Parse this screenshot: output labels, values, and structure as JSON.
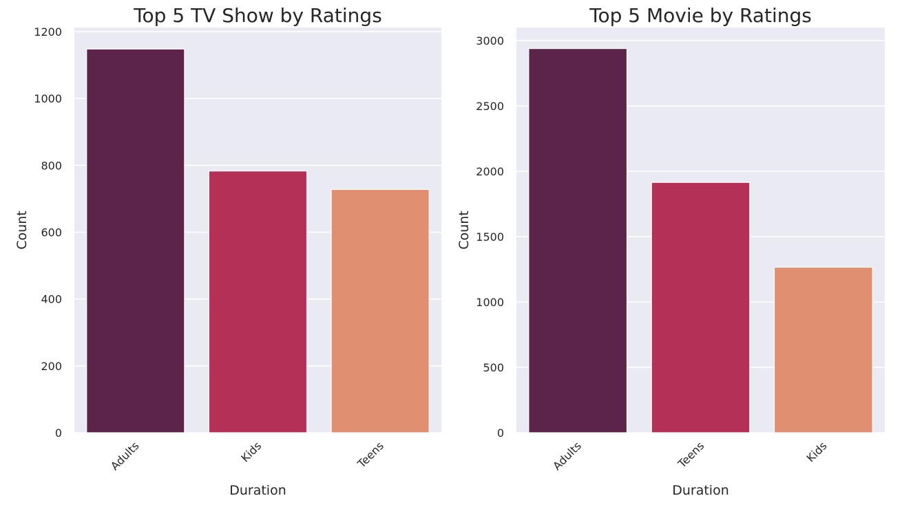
{
  "chart_data": [
    {
      "type": "bar",
      "title": "Top 5 TV Show by Ratings",
      "xlabel": "Duration",
      "ylabel": "Count",
      "categories": [
        "Adults",
        "Kids",
        "Teens"
      ],
      "values": [
        1148,
        783,
        728
      ],
      "ylim": [
        0,
        1200
      ],
      "yticks": [
        "0",
        "200",
        "400",
        "600",
        "800",
        "1000",
        "1200"
      ],
      "colors": [
        "#5c244a",
        "#b43057",
        "#e18f71"
      ],
      "background": "#eaeaf2",
      "grid": true,
      "legend": "none"
    },
    {
      "type": "bar",
      "title": "Top 5 Movie by Ratings",
      "xlabel": "Duration",
      "ylabel": "Count",
      "categories": [
        "Adults",
        "Teens",
        "Kids"
      ],
      "values": [
        2939,
        1915,
        1266
      ],
      "ylim": [
        0,
        3000
      ],
      "yticks": [
        "0",
        "500",
        "1000",
        "1500",
        "2000",
        "2500",
        "3000"
      ],
      "colors": [
        "#5c244a",
        "#b43057",
        "#e18f71"
      ],
      "background": "#eaeaf2",
      "grid": true,
      "legend": "none"
    }
  ]
}
